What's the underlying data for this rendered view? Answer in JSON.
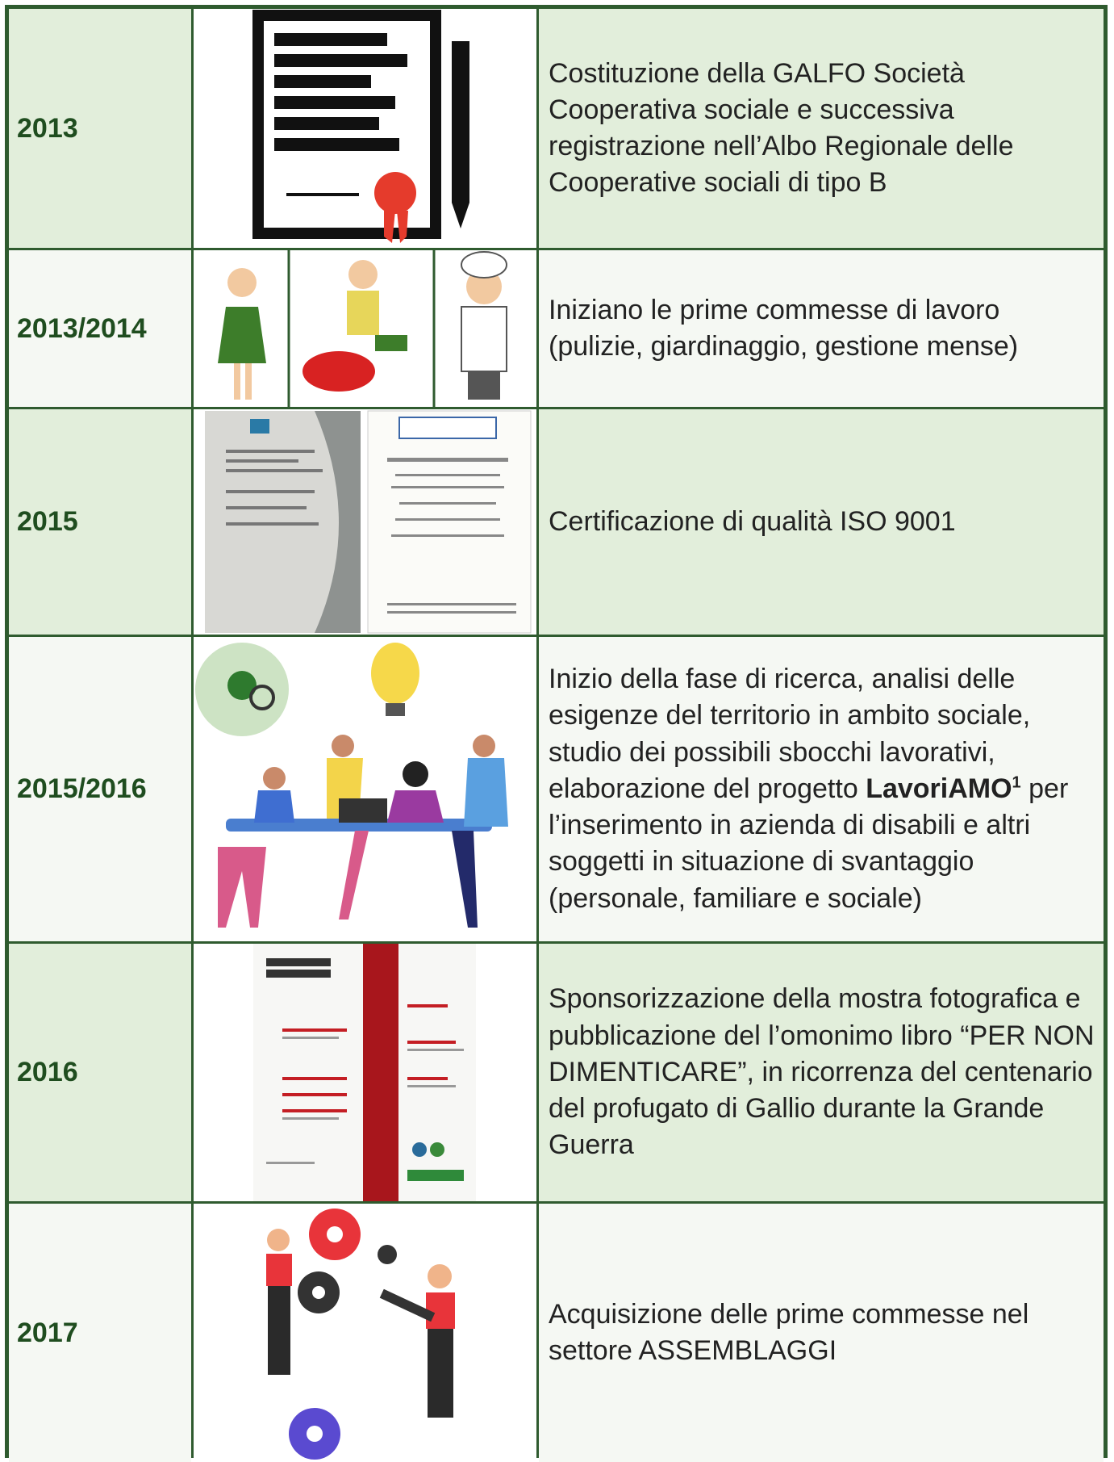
{
  "table": {
    "rows": [
      {
        "year": "2013",
        "description": "Costituzione della GALFO Società Cooperativa sociale e successiva registrazione nell’Albo Regionale delle Cooperative sociali di tipo B"
      },
      {
        "year": "2013/2014",
        "description": "Iniziano le prime commesse di lavoro (pulizie, giardinaggio, gestione mense)"
      },
      {
        "year": "2015",
        "description": "Certificazione di qualità ISO 9001"
      },
      {
        "year": "2015/2016",
        "text_before": "Inizio della fase di ricerca, analisi delle esigenze del territorio in ambito sociale, studio dei possibili sbocchi lavorativi, elaborazione del progetto",
        "bold_text": "LavoriAMO",
        "footnote": "1",
        "text_after": "per l’inserimento in azienda di disabili e altri soggetti in situazione di svantaggio (personale, familiare e sociale)"
      },
      {
        "year": "2016",
        "description": "Sponsorizzazione della mostra fotografica e pubblicazione del l’omonimo libro “PER NON DIMENTICARE”, in ricorrenza del centenario del profugato di Gallio durante la Grande Guerra"
      },
      {
        "year": "2017",
        "description": "Acquisizione delle prime commesse nel settore ASSEMBLAGGI"
      }
    ]
  }
}
